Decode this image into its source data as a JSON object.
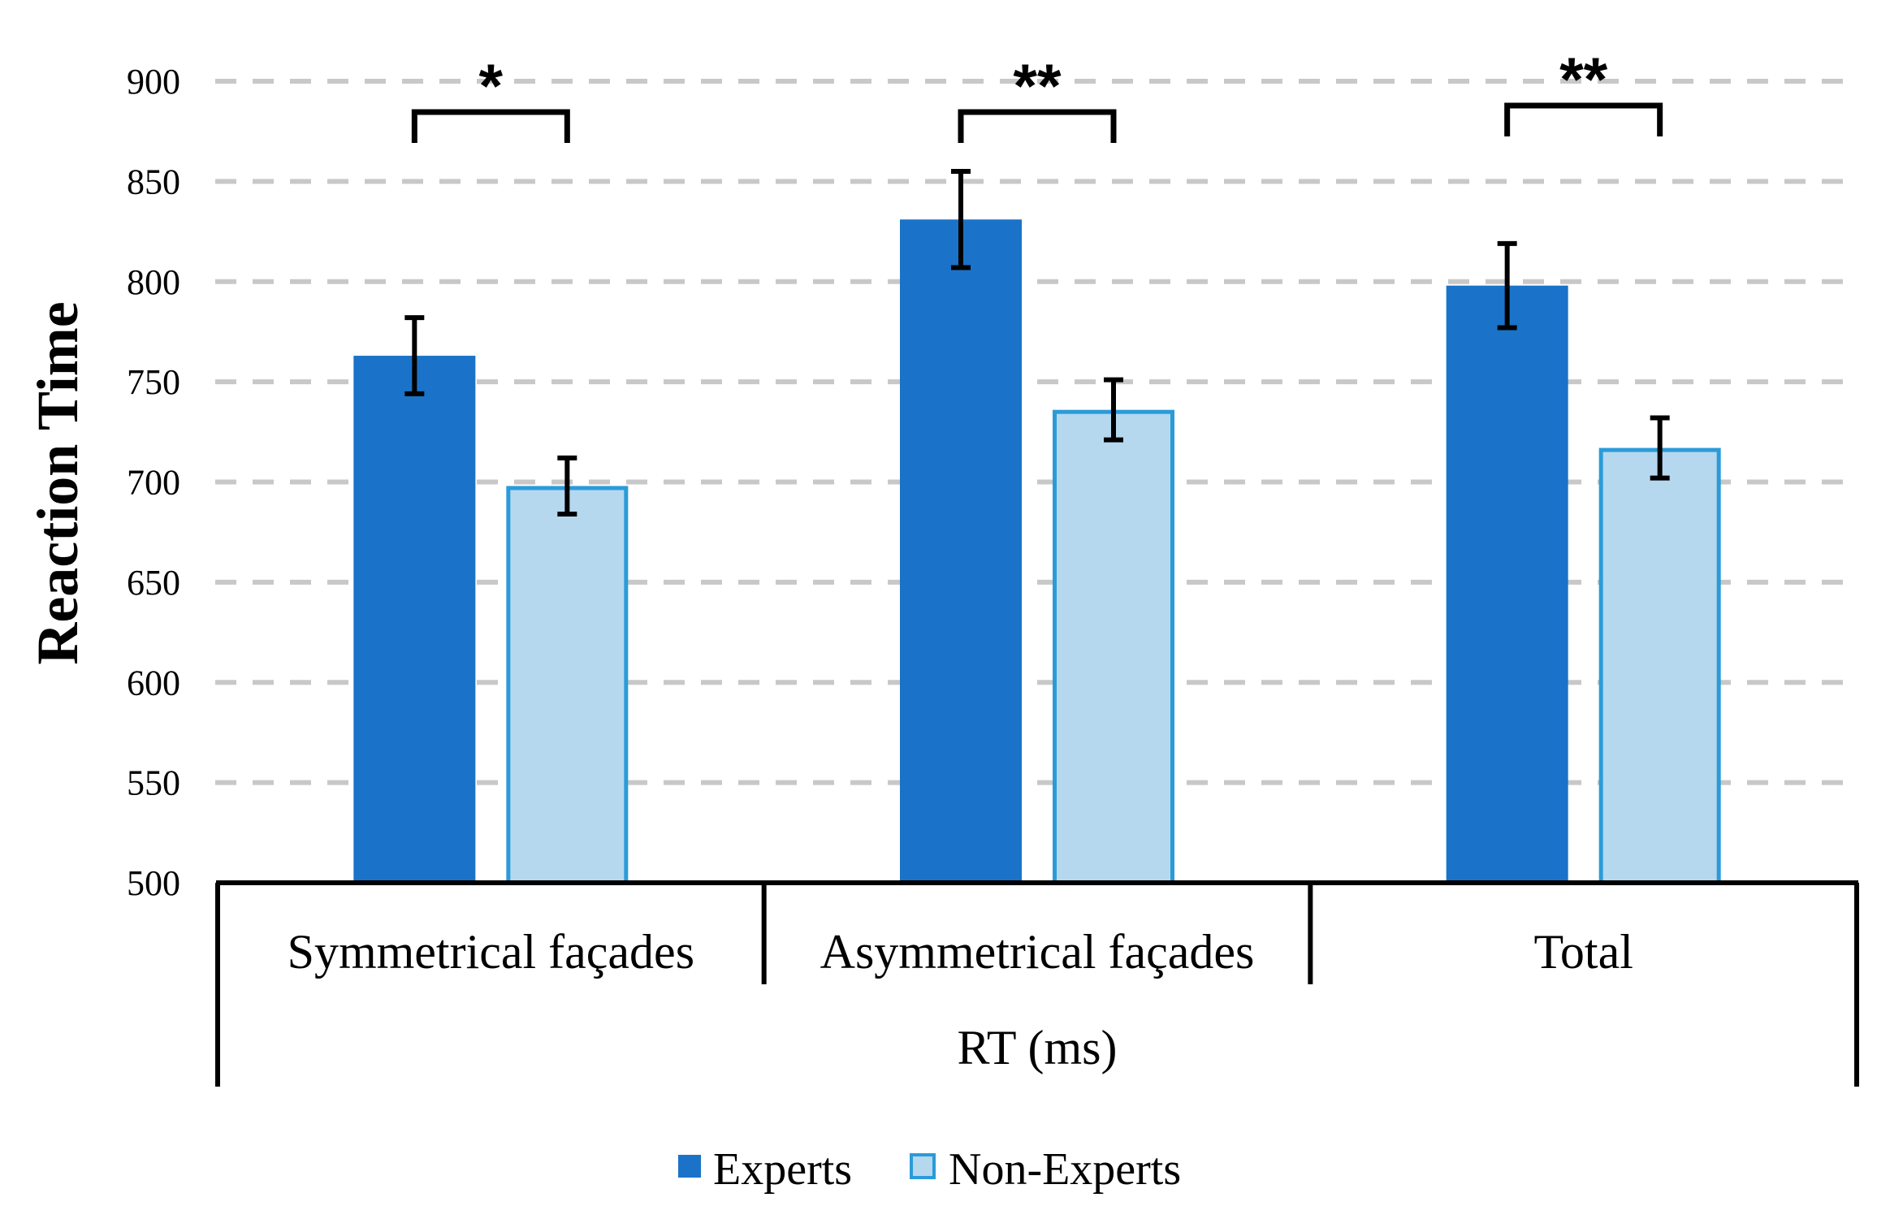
{
  "chart_data": {
    "type": "bar",
    "title": "",
    "ylabel": "Reaction Time",
    "xlabel": "RT (ms)",
    "ylim": [
      500,
      900
    ],
    "yticks": [
      500,
      550,
      600,
      650,
      700,
      750,
      800,
      850,
      900
    ],
    "grid": "dashed horizontal",
    "legend_position": "bottom-center",
    "categories": [
      "Symmetrical façades",
      "Asymmetrical façades",
      "Total"
    ],
    "series": [
      {
        "name": "Experts",
        "color": "#1a73c9",
        "values": [
          763,
          831,
          798
        ],
        "error": [
          19,
          24,
          21
        ]
      },
      {
        "name": "Non-Experts",
        "color": "#b5d8ef",
        "border_color": "#2b9bd8",
        "values": [
          698,
          736,
          717
        ],
        "error": [
          14,
          15,
          15
        ]
      }
    ],
    "significance": [
      "*",
      "**",
      "**"
    ]
  }
}
